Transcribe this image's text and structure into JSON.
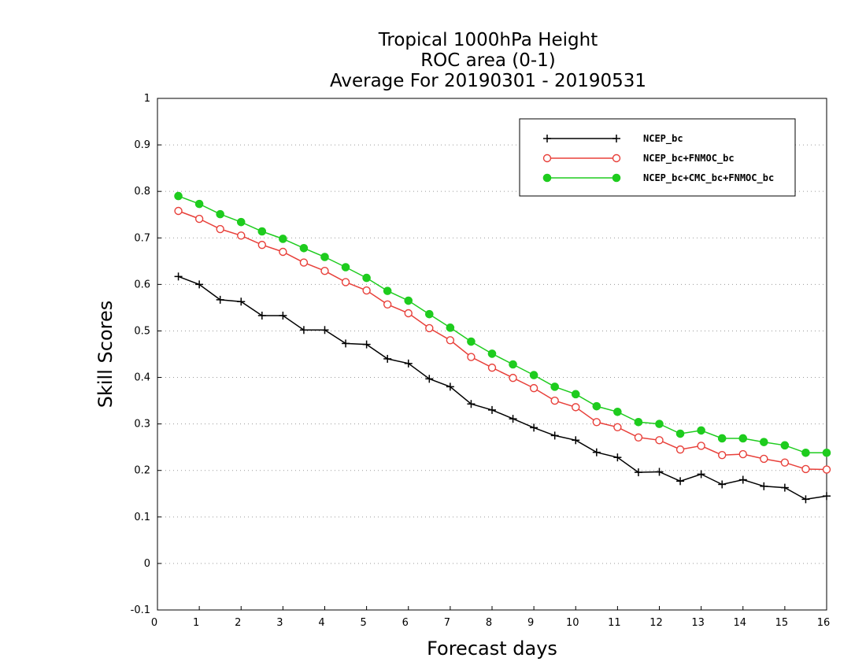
{
  "chart_data": {
    "type": "line",
    "title_lines": [
      "Tropical 1000hPa Height",
      "ROC area (0-1)",
      "Average For 20190301 - 20190531"
    ],
    "xlabel": "Forecast days",
    "ylabel": "Skill Scores",
    "xlim": [
      0,
      16
    ],
    "ylim": [
      -0.1,
      1
    ],
    "x_ticks": [
      "0",
      "1",
      "2",
      "3",
      "4",
      "5",
      "6",
      "7",
      "8",
      "9",
      "10",
      "11",
      "12",
      "13",
      "14",
      "15",
      "16"
    ],
    "y_ticks": [
      "-0.1",
      "0",
      "0.1",
      "0.2",
      "0.3",
      "0.4",
      "0.5",
      "0.6",
      "0.7",
      "0.8",
      "0.9",
      "1"
    ],
    "grid": "horizontal dotted",
    "legend_position": "top-right",
    "x": [
      0.5,
      1,
      1.5,
      2,
      2.5,
      3,
      3.5,
      4,
      4.5,
      5,
      5.5,
      6,
      6.5,
      7,
      7.5,
      8,
      8.5,
      9,
      9.5,
      10,
      10.5,
      11,
      11.5,
      12,
      12.5,
      13,
      13.5,
      14,
      14.5,
      15,
      15.5,
      16
    ],
    "series": [
      {
        "name": "NCEP_bc",
        "color": "#000000",
        "marker": "plus",
        "values": [
          0.617,
          0.6,
          0.567,
          0.563,
          0.533,
          0.533,
          0.502,
          0.502,
          0.473,
          0.471,
          0.44,
          0.43,
          0.397,
          0.38,
          0.343,
          0.33,
          0.311,
          0.292,
          0.275,
          0.265,
          0.239,
          0.228,
          0.196,
          0.197,
          0.177,
          0.192,
          0.17,
          0.18,
          0.166,
          0.163,
          0.138,
          0.145
        ]
      },
      {
        "name": "NCEP_bc+FNMOC_bc",
        "color": "#e8403a",
        "marker": "open-circle",
        "values": [
          0.758,
          0.741,
          0.719,
          0.705,
          0.685,
          0.67,
          0.647,
          0.629,
          0.605,
          0.587,
          0.557,
          0.538,
          0.506,
          0.48,
          0.444,
          0.421,
          0.399,
          0.377,
          0.35,
          0.336,
          0.304,
          0.293,
          0.271,
          0.265,
          0.245,
          0.253,
          0.233,
          0.235,
          0.225,
          0.217,
          0.203,
          0.202
        ]
      },
      {
        "name": "NCEP_bc+CMC_bc+FNMOC_bc",
        "color": "#1ecc1e",
        "marker": "filled-circle",
        "values": [
          0.79,
          0.773,
          0.751,
          0.734,
          0.714,
          0.698,
          0.678,
          0.659,
          0.637,
          0.614,
          0.586,
          0.565,
          0.536,
          0.507,
          0.477,
          0.451,
          0.428,
          0.405,
          0.38,
          0.364,
          0.338,
          0.326,
          0.304,
          0.3,
          0.279,
          0.286,
          0.269,
          0.269,
          0.261,
          0.254,
          0.238,
          0.238
        ]
      }
    ]
  }
}
